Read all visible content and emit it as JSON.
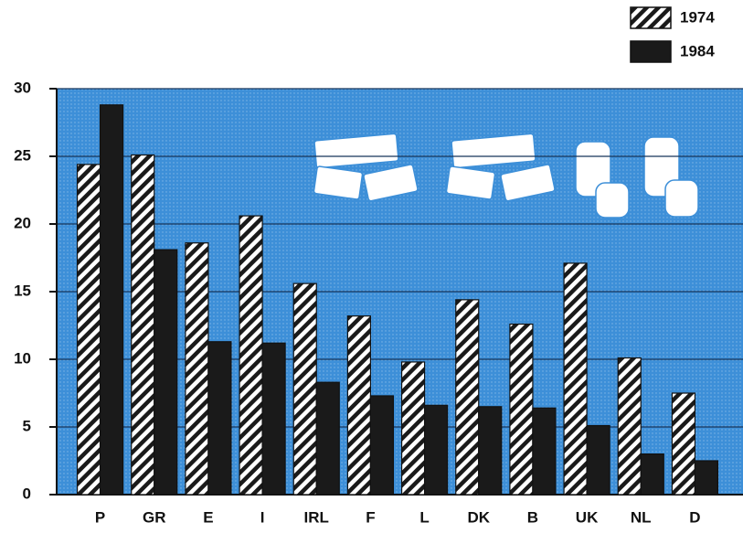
{
  "chart_data": {
    "type": "bar",
    "categories": [
      "P",
      "GR",
      "E",
      "I",
      "IRL",
      "F",
      "L",
      "DK",
      "B",
      "UK",
      "NL",
      "D"
    ],
    "series": [
      {
        "name": "1974",
        "color": "#1a1a1a",
        "pattern": "hatch",
        "values": [
          24.4,
          25.1,
          18.6,
          20.6,
          15.6,
          13.2,
          9.8,
          14.4,
          12.6,
          17.1,
          10.1,
          7.5
        ]
      },
      {
        "name": "1984",
        "color": "#1a1a1a",
        "pattern": "solid",
        "values": [
          28.8,
          18.1,
          11.3,
          11.2,
          8.3,
          7.3,
          6.6,
          6.5,
          6.4,
          5.1,
          3.0,
          2.5
        ]
      }
    ],
    "ylim": [
      0,
      30
    ],
    "yticks": [
      0,
      5,
      10,
      15,
      20,
      25,
      30
    ],
    "grid": true,
    "background": "#3d8fd8",
    "legend": "top-right"
  }
}
